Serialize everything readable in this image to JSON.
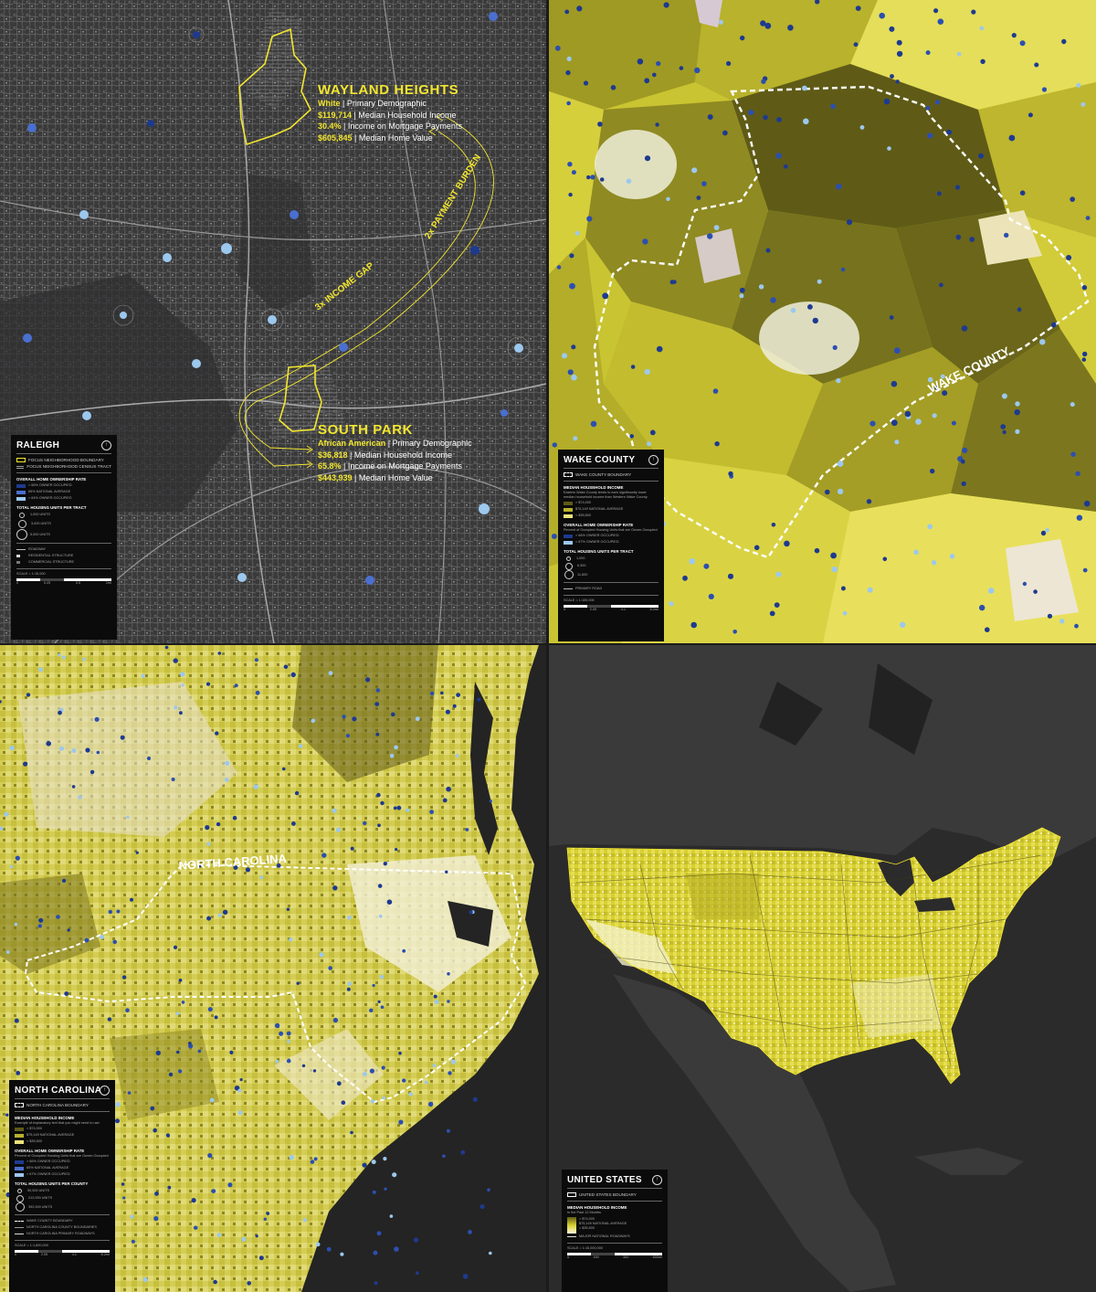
{
  "raleigh": {
    "wayland": {
      "name": "WAYLAND HEIGHTS",
      "demo_value": "White",
      "demo_label": "Primary Demographic",
      "income_value": "$119,714",
      "income_label": "Median Household Income",
      "mortgage_value": "30.4%",
      "mortgage_label": "Income on Mortgage Payments",
      "home_value": "$605,845",
      "home_label": "Median Home Value"
    },
    "south_park": {
      "name": "SOUTH PARK",
      "demo_value": "African American",
      "demo_label": "Primary Demographic",
      "income_value": "$36,818",
      "income_label": "Median Household Income",
      "mortgage_value": "65.8%",
      "mortgage_label": "Income on Mortgage Payments",
      "home_value": "$443,939",
      "home_label": "Median Home Value"
    },
    "arrow_income": "3x INCOME GAP",
    "arrow_payment": "2x PAYMENT BURDEN",
    "legend": {
      "title": "RALEIGH",
      "boundary": "FOCUS NEIGHBORHOOD BOUNDARY",
      "tract": "FOCUS NEIGHBORHOOD CENSUS TRACT",
      "ownership_header": "OVERALL HOME OWNERSHIP RATE",
      "own_high": "> 66% OWNER OCCUPIED",
      "own_avg": "65% NATIONAL AVERAGE",
      "own_low": "< 64% OWNER OCCUPIED",
      "units_header": "TOTAL HOUSING UNITS PER TRACT",
      "u1": "1,000 UNITS",
      "u2": "3,000 UNITS",
      "u3": "5,000 UNITS",
      "roadway": "ROADWAY",
      "residential": "RESIDENTIAL STRUCTURE",
      "commercial": "COMMERCIAL STRUCTURE",
      "scale": "SCALE = 1:15,000",
      "s0": "0",
      "s1": "0.25",
      "s2": "0.5",
      "s3": "1mi"
    }
  },
  "wake": {
    "label": "WAKE COUNTY",
    "legend": {
      "title": "WAKE COUNTY",
      "boundary": "WAKE COUNTY BOUNDARY",
      "income_header": "MEDIAN HOUSEHOLD INCOME",
      "income_note": "Eastern Wake County tends to earn significantly lower median household income than Western Wake County.",
      "inc_high": "> $74,000",
      "inc_avg": "$75,149 NATIONAL AVERAGE",
      "inc_low": "< $35,500",
      "ownership_header": "OVERALL HOME OWNERSHIP RATE",
      "ownership_note": "Percent of Occupied Housing Units that are Owner-Occupied",
      "own_high": "> 66% OWNER OCCUPIED",
      "own_avg": "65% NATIONAL AVERAGE",
      "own_low": "< 67% OWNER OCCUPIED",
      "units_header": "TOTAL HOUSING UNITS PER TRACT",
      "u1": "1,000",
      "u2": "6,300",
      "u3": "11,600",
      "road": "PRIMARY ROAD",
      "scale": "SCALE = 1:100,000",
      "s0": "0",
      "s1": "2.05",
      "s2": "4.1",
      "s3": "8.2mi"
    }
  },
  "nc": {
    "label": "NORTH CAROLINA",
    "legend": {
      "title": "NORTH CAROLINA",
      "boundary": "NORTH CAROLINA BOUNDARY",
      "income_header": "MEDIAN HOUSEHOLD INCOME",
      "income_note": "Example of explanatory text that you might need to use.",
      "inc_high": "> $74,000",
      "inc_avg": "$75,149 NATIONAL AVERAGE",
      "inc_low": "< $35,500",
      "ownership_header": "OVERALL HOME OWNERSHIP RATE",
      "ownership_note": "Percent of Occupied Housing Units that are Owner-Occupied",
      "own_high": "> 66% OWNER OCCUPIED",
      "own_avg": "65% NATIONAL AVERAGE",
      "own_low": "< 67% OWNER OCCUPIED",
      "units_header": "TOTAL HOUSING UNITS PER COUNTY",
      "u1": "50,000 UNITS",
      "u2": "212,000 UNITS",
      "u3": "392,000 UNITS",
      "wake": "WAKE COUNTY BOUNDARY",
      "counties": "NORTH CAROLINA COUNTY BOUNDARIES",
      "roads": "NORTH CAROLINA PRIMARY ROADWAYS",
      "scale": "SCALE = 1:1,600,000",
      "s0": "0",
      "s1": "2.05",
      "s2": "4.1",
      "s3": "8.2mi"
    }
  },
  "us": {
    "legend": {
      "title": "UNITED STATES",
      "boundary": "UNITED STATES BOUNDARY",
      "income_header": "MEDIAN HOUSEHOLD INCOME",
      "income_note": "In the Past 12 Months",
      "inc_high": "> $74,000",
      "inc_avg": "$75,149 NATIONAL AVERAGE",
      "inc_low": "< $35,500",
      "roads": "MAJOR NATIONAL ROADWAYS",
      "scale": "SCALE = 1:15,000,000",
      "s0": "0",
      "s1": "150",
      "s2": "300",
      "s3": "600mi"
    }
  },
  "colors": {
    "accent": "#f2e62e",
    "blue_high": "#1e3a8f",
    "blue_mid": "#4a6fd0",
    "blue_low": "#9cc8ee"
  }
}
